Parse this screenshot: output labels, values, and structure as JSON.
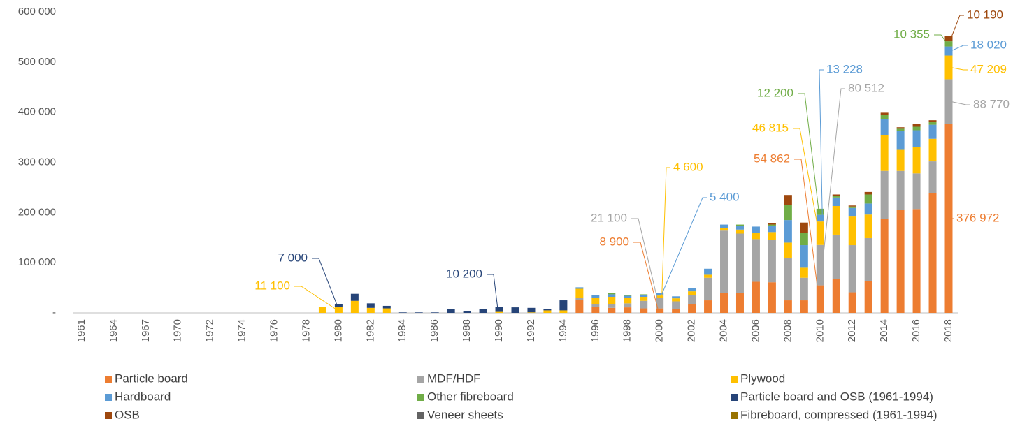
{
  "chart_data": {
    "type": "stacked_bar",
    "categories": [
      "1961",
      null,
      "1964",
      null,
      "1967",
      null,
      "1970",
      null,
      "1972",
      null,
      "1974",
      null,
      "1976",
      null,
      "1978",
      null,
      "1980",
      null,
      "1982",
      null,
      "1984",
      null,
      "1986",
      null,
      "1988",
      null,
      "1990",
      null,
      "1992",
      null,
      "1994",
      null,
      "1996",
      null,
      "1998",
      null,
      "2000",
      null,
      "2002",
      null,
      "2004",
      null,
      "2006",
      null,
      "2008",
      null,
      "2010",
      null,
      "2012",
      null,
      "2014",
      null,
      "2016",
      null,
      "2018"
    ],
    "ylim": [
      0,
      600000
    ],
    "yticks": [
      {
        "value": 0,
        "label": "-"
      },
      {
        "value": 100000,
        "label": "100 000"
      },
      {
        "value": 200000,
        "label": "200 000"
      },
      {
        "value": 300000,
        "label": "300 000"
      },
      {
        "value": 400000,
        "label": "400 000"
      },
      {
        "value": 500000,
        "label": "500 000"
      },
      {
        "value": 600000,
        "label": "600 000"
      }
    ],
    "grid": false,
    "legend_position": "bottom",
    "series": [
      {
        "name": "Particle board",
        "color": "#ed7d31",
        "values": [
          0,
          0,
          0,
          0,
          0,
          0,
          0,
          0,
          0,
          0,
          0,
          0,
          0,
          0,
          0,
          0,
          0,
          0,
          0,
          0,
          0,
          0,
          0,
          0,
          0,
          0,
          0,
          0,
          0,
          0,
          0,
          26000,
          12000,
          10000,
          11000,
          9000,
          8900,
          7000,
          18000,
          25000,
          40000,
          40000,
          62000,
          61000,
          25000,
          25000,
          54862,
          67000,
          41000,
          63000,
          187000,
          205000,
          207000,
          239000,
          376972
        ],
        "value_labels": [
          null,
          null,
          null,
          null,
          null,
          null,
          null,
          null,
          null,
          null,
          null,
          null,
          null,
          null,
          null,
          null,
          null,
          null,
          null,
          null,
          null,
          null,
          null,
          null,
          null,
          null,
          null,
          null,
          null,
          null,
          null,
          null,
          null,
          null,
          null,
          null,
          "8 900",
          null,
          null,
          null,
          null,
          null,
          null,
          null,
          null,
          null,
          "54 862",
          null,
          null,
          null,
          null,
          null,
          null,
          null,
          "376 972"
        ]
      },
      {
        "name": "MDF/HDF",
        "color": "#a5a5a5",
        "values": [
          0,
          0,
          0,
          0,
          0,
          0,
          0,
          0,
          0,
          0,
          0,
          0,
          0,
          0,
          0,
          0,
          0,
          0,
          0,
          0,
          0,
          0,
          0,
          0,
          0,
          0,
          0,
          0,
          0,
          0,
          0,
          4000,
          6000,
          8000,
          8000,
          15000,
          21100,
          16000,
          18000,
          45000,
          124000,
          118000,
          85000,
          85000,
          85000,
          45000,
          80512,
          89000,
          94000,
          86000,
          96000,
          78000,
          71000,
          63000,
          88770
        ],
        "value_labels": [
          null,
          null,
          null,
          null,
          null,
          null,
          null,
          null,
          null,
          null,
          null,
          null,
          null,
          null,
          null,
          null,
          null,
          null,
          null,
          null,
          null,
          null,
          null,
          null,
          null,
          null,
          null,
          null,
          null,
          null,
          null,
          null,
          null,
          null,
          null,
          null,
          "21 100",
          null,
          null,
          null,
          null,
          null,
          null,
          null,
          null,
          null,
          "80 512",
          null,
          null,
          null,
          null,
          null,
          null,
          null,
          "88 770"
        ]
      },
      {
        "name": "Plywood",
        "color": "#ffc000",
        "values": [
          0,
          0,
          0,
          0,
          0,
          0,
          0,
          0,
          0,
          0,
          0,
          0,
          0,
          0,
          0,
          12000,
          11100,
          24000,
          10000,
          9000,
          0,
          0,
          0,
          0,
          0,
          0,
          2000,
          0,
          1000,
          5000,
          5000,
          18000,
          12000,
          14000,
          11000,
          8000,
          4600,
          6000,
          7000,
          6000,
          5000,
          8000,
          12000,
          15000,
          30000,
          20000,
          46815,
          57000,
          57000,
          47000,
          72000,
          42000,
          53000,
          45000,
          47209
        ],
        "value_labels": [
          null,
          null,
          null,
          null,
          null,
          null,
          null,
          null,
          null,
          null,
          null,
          null,
          null,
          null,
          null,
          null,
          "11 100",
          null,
          null,
          null,
          null,
          null,
          null,
          null,
          null,
          null,
          null,
          null,
          null,
          null,
          null,
          null,
          null,
          null,
          null,
          null,
          "4 600",
          null,
          null,
          null,
          null,
          null,
          null,
          null,
          null,
          null,
          "46 815",
          null,
          null,
          null,
          null,
          null,
          null,
          null,
          "47 209"
        ]
      },
      {
        "name": "Hardboard",
        "color": "#5b9bd5",
        "values": [
          0,
          0,
          0,
          0,
          0,
          0,
          0,
          0,
          0,
          0,
          0,
          0,
          0,
          0,
          0,
          0,
          0,
          0,
          0,
          0,
          0,
          0,
          0,
          0,
          0,
          0,
          0,
          0,
          0,
          0,
          0,
          3000,
          5000,
          5000,
          4000,
          4000,
          5400,
          4000,
          6000,
          12000,
          7000,
          8000,
          13000,
          12000,
          45000,
          45000,
          13228,
          17000,
          17000,
          22000,
          31000,
          37000,
          33000,
          28000,
          18020
        ],
        "value_labels": [
          null,
          null,
          null,
          null,
          null,
          null,
          null,
          null,
          null,
          null,
          null,
          null,
          null,
          null,
          null,
          null,
          null,
          null,
          null,
          null,
          null,
          null,
          null,
          null,
          null,
          null,
          null,
          null,
          null,
          null,
          null,
          null,
          null,
          null,
          null,
          null,
          "5 400",
          null,
          null,
          null,
          null,
          null,
          null,
          null,
          null,
          null,
          "13 228",
          null,
          null,
          null,
          null,
          null,
          null,
          null,
          "18 020"
        ]
      },
      {
        "name": "Other fibreboard",
        "color": "#70ad47",
        "values": [
          0,
          0,
          0,
          0,
          0,
          0,
          0,
          0,
          0,
          0,
          0,
          0,
          0,
          0,
          0,
          0,
          0,
          0,
          0,
          0,
          0,
          0,
          0,
          0,
          0,
          0,
          0,
          0,
          0,
          0,
          0,
          0,
          1000,
          2000,
          2000,
          1000,
          0,
          0,
          0,
          0,
          0,
          2000,
          0,
          3000,
          30000,
          25000,
          12200,
          3000,
          3000,
          18000,
          8000,
          5000,
          7000,
          5000,
          10355
        ],
        "value_labels": [
          null,
          null,
          null,
          null,
          null,
          null,
          null,
          null,
          null,
          null,
          null,
          null,
          null,
          null,
          null,
          null,
          null,
          null,
          null,
          null,
          null,
          null,
          null,
          null,
          null,
          null,
          null,
          null,
          null,
          null,
          null,
          null,
          null,
          null,
          null,
          null,
          null,
          null,
          null,
          null,
          null,
          null,
          null,
          null,
          null,
          null,
          "12 200",
          null,
          null,
          null,
          null,
          null,
          null,
          null,
          "10 355"
        ]
      },
      {
        "name": "Particle board and OSB (1961-1994)",
        "color": "#264478",
        "values": [
          0,
          0,
          0,
          0,
          0,
          0,
          0,
          0,
          0,
          0,
          0,
          0,
          0,
          0,
          0,
          0,
          7000,
          14000,
          9000,
          5000,
          1000,
          1000,
          1000,
          8000,
          3000,
          7000,
          10200,
          11000,
          9000,
          3000,
          20000,
          0,
          0,
          0,
          0,
          0,
          0,
          0,
          0,
          0,
          0,
          0,
          0,
          0,
          0,
          0,
          0,
          0,
          0,
          0,
          0,
          0,
          0,
          0,
          0
        ],
        "value_labels": [
          null,
          null,
          null,
          null,
          null,
          null,
          null,
          null,
          null,
          null,
          null,
          null,
          null,
          null,
          null,
          null,
          "7 000",
          null,
          null,
          null,
          null,
          null,
          null,
          null,
          null,
          null,
          "10 200",
          null,
          null,
          null,
          null,
          null,
          null,
          null,
          null,
          null,
          null,
          null,
          null,
          null,
          null,
          null,
          null,
          null,
          null,
          null,
          null,
          null,
          null,
          null,
          null,
          null,
          null,
          null,
          null
        ]
      },
      {
        "name": "OSB",
        "color": "#9e480e",
        "values": [
          0,
          0,
          0,
          0,
          0,
          0,
          0,
          0,
          0,
          0,
          0,
          0,
          0,
          0,
          0,
          0,
          0,
          0,
          0,
          0,
          0,
          0,
          0,
          0,
          0,
          0,
          0,
          0,
          0,
          0,
          0,
          0,
          0,
          0,
          0,
          0,
          0,
          0,
          0,
          0,
          0,
          0,
          0,
          3000,
          20000,
          20000,
          0,
          3000,
          2000,
          5000,
          5000,
          3000,
          5000,
          4000,
          10190
        ],
        "value_labels": [
          null,
          null,
          null,
          null,
          null,
          null,
          null,
          null,
          null,
          null,
          null,
          null,
          null,
          null,
          null,
          null,
          null,
          null,
          null,
          null,
          null,
          null,
          null,
          null,
          null,
          null,
          null,
          null,
          null,
          null,
          null,
          null,
          null,
          null,
          null,
          null,
          null,
          null,
          null,
          null,
          null,
          null,
          null,
          null,
          null,
          null,
          null,
          null,
          null,
          null,
          null,
          null,
          null,
          null,
          "10 190"
        ]
      },
      {
        "name": "Veneer sheets",
        "color": "#636363",
        "values": [
          0,
          0,
          0,
          0,
          0,
          0,
          0,
          0,
          0,
          0,
          0,
          0,
          0,
          0,
          0,
          0,
          0,
          0,
          0,
          0,
          0,
          0,
          0,
          0,
          0,
          0,
          0,
          0,
          0,
          0,
          0,
          0,
          0,
          0,
          0,
          0,
          0,
          0,
          0,
          0,
          0,
          0,
          0,
          0,
          0,
          0,
          0,
          0,
          0,
          0,
          0,
          0,
          0,
          0,
          0
        ]
      },
      {
        "name": "Fibreboard, compressed (1961-1994)",
        "color": "#997300",
        "values": [
          0,
          0,
          0,
          0,
          0,
          0,
          0,
          0,
          0,
          0,
          0,
          0,
          0,
          0,
          0,
          0,
          0,
          0,
          0,
          0,
          0,
          0,
          0,
          0,
          0,
          0,
          0,
          0,
          0,
          0,
          0,
          0,
          0,
          0,
          0,
          0,
          0,
          0,
          0,
          0,
          0,
          0,
          0,
          0,
          0,
          0,
          0,
          0,
          0,
          0,
          0,
          0,
          0,
          0,
          0
        ]
      }
    ]
  }
}
